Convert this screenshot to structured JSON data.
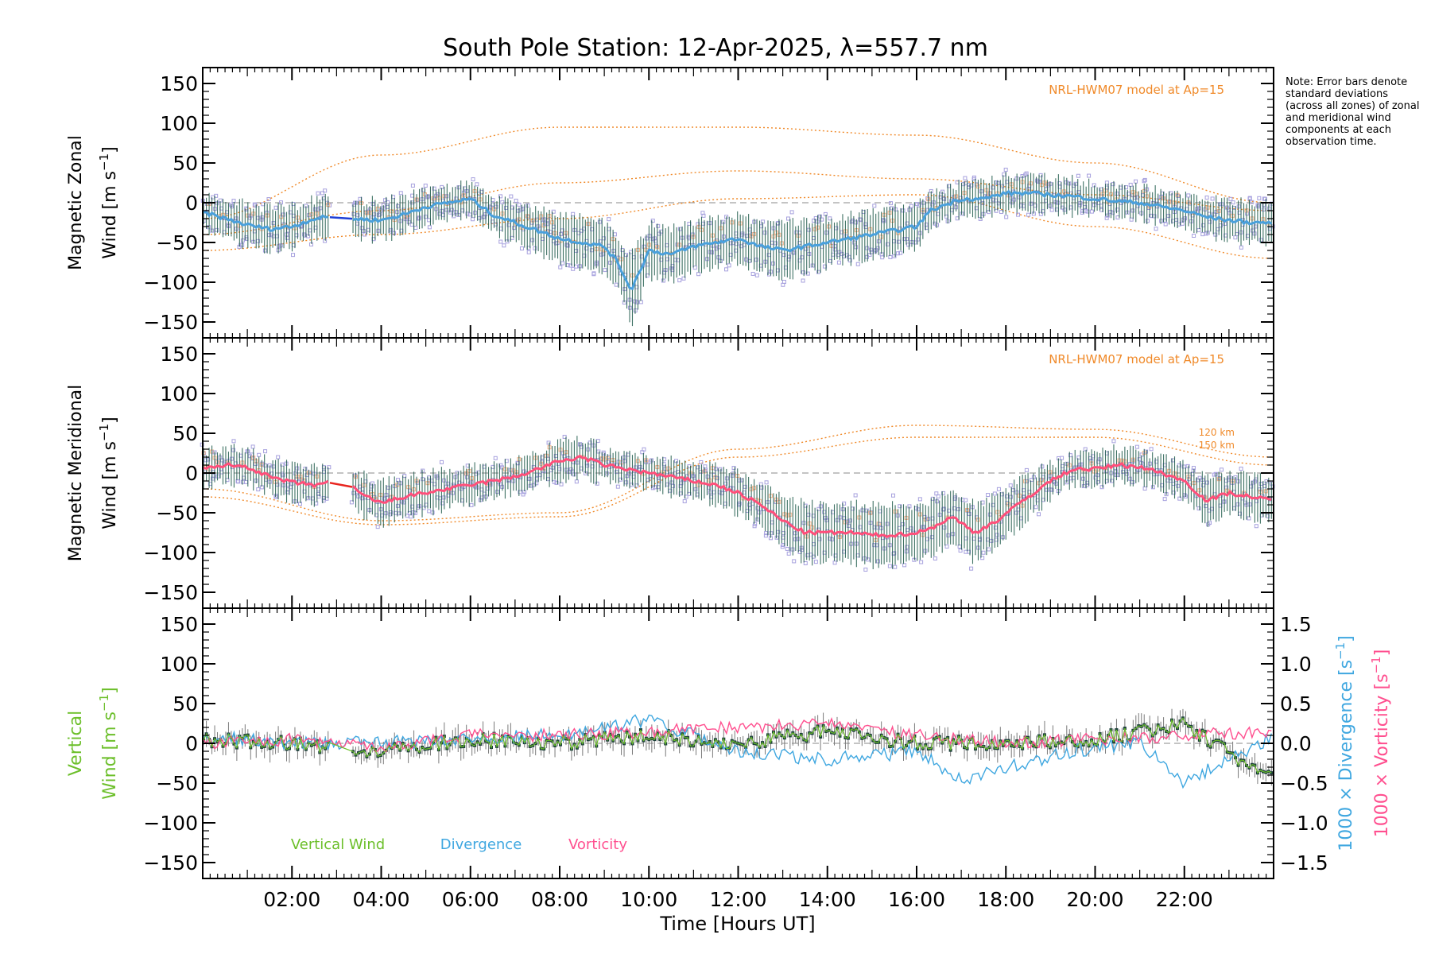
{
  "title": "South Pole Station: 12-Apr-2025, λ=557.7 nm",
  "note": "Note: Error bars denote standard deviations (across all zones) of zonal and meridional wind components at each observation time.",
  "colors": {
    "zonal": "#4aa0dc",
    "zonal_dark": "#1f3fd6",
    "meridional": "#ff4f7a",
    "meridional_dark": "#e8241e",
    "vertical": "#6cbf2a",
    "divergence": "#3fa7e0",
    "vorticity": "#ff4f8f",
    "model": "#f08a2a",
    "errorbar": "#1e5a4a",
    "scatter": "#a7a1de"
  },
  "x_axis": {
    "label": "Time [Hours UT]",
    "range_hours": [
      0,
      24
    ],
    "tick_labels": [
      "02:00",
      "04:00",
      "06:00",
      "08:00",
      "10:00",
      "12:00",
      "14:00",
      "16:00",
      "18:00",
      "20:00",
      "22:00"
    ],
    "tick_hours": [
      2,
      4,
      6,
      8,
      10,
      12,
      14,
      16,
      18,
      20,
      22
    ]
  },
  "y_tick_labels": [
    "150",
    "100",
    "50",
    "0",
    "−50",
    "−100",
    "−150"
  ],
  "y_tick_values": [
    150,
    100,
    50,
    0,
    -50,
    -100,
    -150
  ],
  "right_tick_labels": [
    "1.5",
    "1.0",
    "0.5",
    "0.0",
    "−0.5",
    "−1.0",
    "−1.5"
  ],
  "right_tick_values": [
    1.5,
    1.0,
    0.5,
    0.0,
    -0.5,
    -1.0,
    -1.5
  ],
  "panels": {
    "zonal": {
      "ylabel_line1": "Magnetic Zonal",
      "ylabel_line2": "Wind [m s",
      "ylabel_sup": "−1",
      "ylabel_close": "]",
      "model_label": "NRL-HWM07 model at Ap=15"
    },
    "meridional": {
      "ylabel_line1": "Magnetic Meridional",
      "ylabel_line2": "Wind [m s",
      "ylabel_sup": "−1",
      "ylabel_close": "]",
      "model_label": "NRL-HWM07 model at Ap=15",
      "alt_label_1": "120 km",
      "alt_label_2": "150 km"
    },
    "vertical": {
      "ylabel_line1": "Vertical",
      "ylabel_line2": "Wind [m s",
      "ylabel_sup": "−1",
      "ylabel_close": "]",
      "right_label_div": "1000 × Divergence [s",
      "right_label_vor": "1000 × Vorticity [s",
      "right_sup": "−1",
      "right_close": "]",
      "legend": [
        "Vertical Wind",
        "Divergence",
        "Vorticity"
      ]
    }
  },
  "chart_data": [
    {
      "type": "line",
      "title": "Magnetic Zonal Wind",
      "ylabel": "Magnetic Zonal Wind [m s-1]",
      "xlabel": "Time [Hours UT]",
      "ylim": [
        -160,
        160
      ],
      "xlim": [
        0,
        24
      ],
      "series": [
        {
          "name": "Zonal wind (mean)",
          "x": [
            0,
            0.5,
            1,
            1.5,
            2,
            2.5,
            2.8,
            3.3,
            4.0,
            4.5,
            5,
            5.5,
            6,
            6.5,
            7,
            7.5,
            8,
            8.5,
            9,
            9.3,
            9.6,
            9.8,
            10,
            10.5,
            11,
            11.5,
            12,
            12.5,
            13,
            13.5,
            14,
            14.5,
            15,
            15.5,
            16,
            16.3,
            17,
            17.5,
            18,
            18.5,
            19,
            19.5,
            20,
            20.5,
            21,
            21.5,
            22,
            22.5,
            23,
            23.5,
            24
          ],
          "values": [
            -12,
            -20,
            -28,
            -33,
            -30,
            -20,
            -18,
            -20,
            -22,
            -15,
            -5,
            0,
            5,
            -15,
            -25,
            -35,
            -45,
            -50,
            -55,
            -75,
            -110,
            -85,
            -60,
            -65,
            -55,
            -50,
            -45,
            -55,
            -60,
            -55,
            -50,
            -45,
            -40,
            -35,
            -30,
            -10,
            5,
            5,
            12,
            12,
            10,
            8,
            5,
            2,
            0,
            -5,
            -10,
            -18,
            -22,
            -25,
            -25
          ]
        },
        {
          "name": "NRL-HWM07 model (upper curve)",
          "x": [
            0,
            4,
            8,
            12,
            16,
            20,
            24
          ],
          "values": [
            -20,
            60,
            95,
            95,
            85,
            50,
            0
          ]
        },
        {
          "name": "NRL-HWM07 model (middle curves)",
          "x": [
            0,
            4,
            8,
            12,
            16,
            20,
            24
          ],
          "values": [
            -40,
            -10,
            25,
            40,
            30,
            10,
            -10
          ]
        },
        {
          "name": "NRL-HWM07 model (lower curve)",
          "x": [
            0,
            4,
            8,
            12,
            16,
            20,
            24
          ],
          "values": [
            -60,
            -40,
            -20,
            5,
            10,
            -30,
            -70
          ]
        }
      ]
    },
    {
      "type": "line",
      "title": "Magnetic Meridional Wind",
      "ylabel": "Magnetic Meridional Wind [m s-1]",
      "xlabel": "Time [Hours UT]",
      "ylim": [
        -160,
        160
      ],
      "xlim": [
        0,
        24
      ],
      "series": [
        {
          "name": "Meridional wind (mean)",
          "x": [
            0,
            0.5,
            1,
            1.5,
            2,
            2.5,
            2.8,
            3.3,
            3.5,
            4,
            4.5,
            5,
            5.5,
            6,
            6.5,
            7,
            7.5,
            8,
            8.5,
            9,
            9.5,
            10,
            10.5,
            11,
            11.5,
            12,
            12.5,
            13,
            13.5,
            14,
            14.5,
            15,
            15.5,
            16,
            16.3,
            16.8,
            17.3,
            17.8,
            18.5,
            19,
            19.5,
            20,
            20.5,
            21,
            21.5,
            22,
            22.5,
            23,
            23.5,
            24
          ],
          "values": [
            5,
            10,
            8,
            -5,
            -12,
            -15,
            -12,
            -15,
            -25,
            -38,
            -30,
            -25,
            -20,
            -15,
            -10,
            -5,
            5,
            15,
            20,
            10,
            5,
            0,
            -5,
            -10,
            -15,
            -25,
            -40,
            -60,
            -75,
            -75,
            -75,
            -78,
            -78,
            -75,
            -70,
            -55,
            -75,
            -60,
            -30,
            -10,
            5,
            5,
            10,
            8,
            0,
            -10,
            -35,
            -25,
            -30,
            -35
          ]
        },
        {
          "name": "NRL-HWM07 model 120 km",
          "x": [
            0,
            4,
            8,
            12,
            16,
            20,
            24
          ],
          "values": [
            -20,
            -60,
            -50,
            30,
            60,
            55,
            20
          ]
        },
        {
          "name": "NRL-HWM07 model 150 km",
          "x": [
            0,
            4,
            8,
            12,
            16,
            20,
            24
          ],
          "values": [
            -30,
            -65,
            -55,
            20,
            45,
            45,
            10
          ]
        }
      ]
    },
    {
      "type": "line",
      "title": "Vertical Wind, Divergence, Vorticity",
      "ylabel": "Vertical Wind [m s-1]",
      "ylabel_right": "1000 x Divergence / Vorticity [s-1]",
      "xlabel": "Time [Hours UT]",
      "ylim": [
        -160,
        160
      ],
      "ylim_right": [
        -1.5,
        1.5
      ],
      "xlim": [
        0,
        24
      ],
      "series": [
        {
          "name": "Vertical Wind",
          "x": [
            0,
            2,
            4,
            6,
            8,
            10,
            12,
            14,
            16,
            18,
            20,
            22,
            23.5,
            24
          ],
          "values": [
            5,
            0,
            -10,
            5,
            0,
            10,
            0,
            15,
            0,
            0,
            5,
            25,
            -30,
            -40
          ]
        },
        {
          "name": "Divergence",
          "x": [
            0,
            2,
            4,
            6,
            8,
            10,
            12,
            14,
            16,
            17,
            18,
            20,
            21,
            22,
            24
          ],
          "values": [
            0.1,
            0.0,
            0.0,
            0.05,
            0.1,
            0.3,
            -0.1,
            -0.2,
            -0.1,
            -0.45,
            -0.3,
            -0.05,
            0.0,
            -0.5,
            0.1
          ]
        },
        {
          "name": "Vorticity",
          "x": [
            0,
            2,
            4,
            6,
            8,
            10,
            12,
            14,
            16,
            18,
            20,
            22,
            24
          ],
          "values": [
            0.0,
            0.05,
            -0.05,
            0.1,
            0.1,
            0.15,
            0.2,
            0.25,
            0.1,
            0.0,
            0.05,
            0.1,
            0.15
          ]
        }
      ]
    }
  ]
}
